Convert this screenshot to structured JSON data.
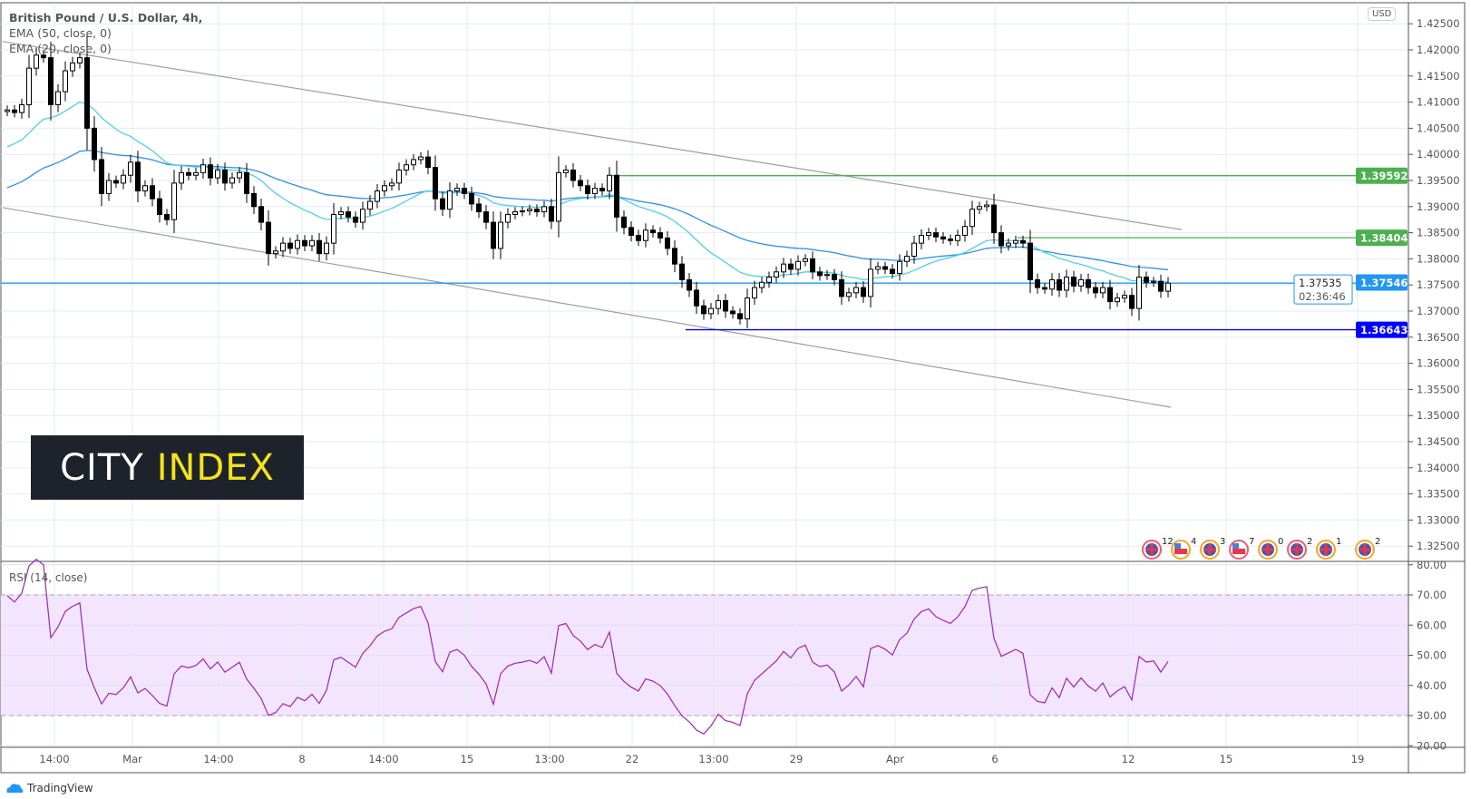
{
  "header": {
    "symbol_title": "British Pound / U.S. Dollar, 4h,",
    "indicator_1": "EMA (50, close, 0)",
    "indicator_2": "EMA (20, close, 0)",
    "currency_badge": "USD"
  },
  "logo": {
    "word1": "CITY",
    "word2": "INDEX",
    "colors": {
      "bg": "#1e232b",
      "word1": "#ffffff",
      "word2": "#f4e21b"
    }
  },
  "footer": {
    "brand": "TradingView"
  },
  "rsi_pane": {
    "label": "RSI (14, close)"
  },
  "chart_data": [
    {
      "type": "candlestick",
      "title": "British Pound / U.S. Dollar, 4h",
      "ylim": [
        1.3225,
        1.4275
      ],
      "y_ticks": [
        "1.42500",
        "1.42000",
        "1.41500",
        "1.41000",
        "1.40500",
        "1.40000",
        "1.39500",
        "1.39000",
        "1.38500",
        "1.38000",
        "1.37500",
        "1.37000",
        "1.36500",
        "1.36000",
        "1.35500",
        "1.35000",
        "1.34500",
        "1.34000",
        "1.33500",
        "1.33000",
        "1.32500"
      ],
      "x_ticks": [
        "14:00",
        "Mar",
        "14:00",
        "8",
        "14:00",
        "15",
        "13:00",
        "22",
        "13:00",
        "29",
        "Apr",
        "6",
        "12",
        "15",
        "19"
      ],
      "grid": true,
      "close": [
        1.4085,
        1.408,
        1.4095,
        1.4165,
        1.419,
        1.4185,
        1.4095,
        1.412,
        1.416,
        1.4175,
        1.4185,
        1.405,
        1.399,
        1.3925,
        1.395,
        1.3945,
        1.396,
        1.3985,
        1.393,
        1.394,
        1.3915,
        1.3885,
        1.3875,
        1.3945,
        1.3965,
        1.396,
        1.3965,
        1.398,
        1.3955,
        1.397,
        1.3945,
        1.3955,
        1.3965,
        1.3925,
        1.39,
        1.387,
        1.381,
        1.3815,
        1.383,
        1.382,
        1.3835,
        1.3825,
        1.3835,
        1.381,
        1.383,
        1.3885,
        1.389,
        1.388,
        1.387,
        1.3895,
        1.391,
        1.393,
        1.394,
        1.3945,
        1.397,
        1.398,
        1.399,
        1.3995,
        1.3975,
        1.3915,
        1.3895,
        1.393,
        1.3935,
        1.3925,
        1.3905,
        1.389,
        1.387,
        1.382,
        1.387,
        1.3885,
        1.389,
        1.3892,
        1.3895,
        1.389,
        1.39,
        1.3872,
        1.3965,
        1.397,
        1.395,
        1.394,
        1.3925,
        1.3935,
        1.393,
        1.396,
        1.388,
        1.386,
        1.3845,
        1.3835,
        1.3855,
        1.385,
        1.384,
        1.382,
        1.379,
        1.376,
        1.374,
        1.371,
        1.3695,
        1.3705,
        1.372,
        1.37,
        1.3695,
        1.3685,
        1.3725,
        1.3745,
        1.3755,
        1.3765,
        1.3775,
        1.379,
        1.378,
        1.3795,
        1.38,
        1.3775,
        1.3768,
        1.377,
        1.376,
        1.3728,
        1.3735,
        1.3745,
        1.3728,
        1.378,
        1.3785,
        1.378,
        1.3772,
        1.3795,
        1.3805,
        1.383,
        1.3845,
        1.385,
        1.3842,
        1.3838,
        1.3835,
        1.3845,
        1.3862,
        1.3895,
        1.39,
        1.3903,
        1.385,
        1.3825,
        1.383,
        1.3835,
        1.383,
        1.376,
        1.3745,
        1.3742,
        1.376,
        1.374,
        1.3765,
        1.3748,
        1.376,
        1.3745,
        1.3735,
        1.3745,
        1.3718,
        1.3725,
        1.373,
        1.3705,
        1.3765,
        1.3755,
        1.3757,
        1.3738,
        1.37535
      ],
      "first_open": 1.4082,
      "ema": [
        {
          "name": "EMA (50, close, 0)",
          "period": 50,
          "start": 1.393,
          "color": "#2f8ff0"
        },
        {
          "name": "EMA (20, close, 0)",
          "period": 20,
          "start": 1.4007,
          "color": "#4fd0e6"
        }
      ],
      "channel": {
        "upper": {
          "start": 1.4216,
          "end": 1.3856
        },
        "lower": {
          "start": 1.3898,
          "end": 1.3516
        },
        "color": "#9e9e9e"
      },
      "levels": [
        {
          "price": "1.39592",
          "color": "#4caf50"
        },
        {
          "price": "1.38404",
          "color": "#4caf50"
        },
        {
          "price": "1.37546",
          "color": "#2196f3"
        },
        {
          "price": "1.37535",
          "color": "#2196f3",
          "countdown": "02:36:46",
          "last_price": true
        },
        {
          "price": "1.36643",
          "color": "#0000ff"
        }
      ],
      "events": [
        {
          "flag": "uk",
          "label": "12",
          "ring": "#f05a6e"
        },
        {
          "flag": "us",
          "label": "4",
          "ring": "#f5a623"
        },
        {
          "flag": "uk",
          "label": "3",
          "ring": "#f5a623"
        },
        {
          "flag": "us",
          "label": "7",
          "ring": "#f05a6e"
        },
        {
          "flag": "uk",
          "label": "0",
          "ring": "#f5a623"
        },
        {
          "flag": "uk",
          "label": "2",
          "ring": "#f05a6e"
        },
        {
          "flag": "uk",
          "label": "1",
          "ring": "#f5a623"
        },
        {
          "flag": "uk",
          "label": "2",
          "ring": "#f5a623"
        }
      ]
    },
    {
      "type": "line",
      "title": "RSI (14, close)",
      "ylim": [
        20,
        80
      ],
      "y_ticks": [
        "80.00",
        "70.00",
        "60.00",
        "50.00",
        "40.00",
        "30.00",
        "20.00"
      ],
      "band": [
        30,
        70
      ],
      "colors": {
        "line": "#9c27b0",
        "band": "#f3e5fd"
      },
      "seed": {
        "avg_gain": 0.0009,
        "avg_loss": 0.0004
      }
    }
  ]
}
